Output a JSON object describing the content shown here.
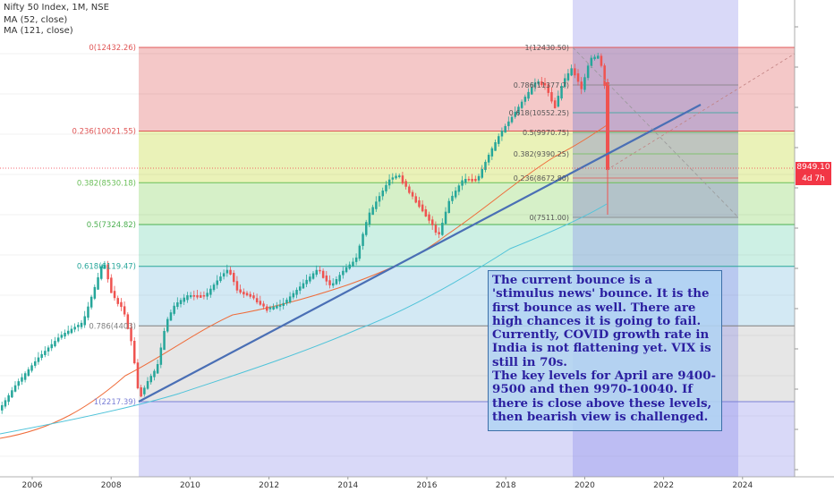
{
  "legend": {
    "symbol_line": "Nifty 50 Index, 1M, NSE",
    "ma1": "MA (52, close)",
    "ma2": "MA (121, close)"
  },
  "price_tag": {
    "value": "8949.10",
    "countdown": "4d 7h",
    "color": "#f23645"
  },
  "note": {
    "lines": [
      "The current bounce is a 'stimulus news' bounce. It is the first bounce as well. There are high chances it is going to fail.",
      "Currently, COVID growth rate in India is not flattening yet. VIX is still in 70s.",
      "The key levels for April are 9400-9500 and then 9970-10040. If there is close above these levels, then bearish view is challenged."
    ]
  },
  "chart_data": {
    "type": "candlestick",
    "title": "",
    "x_axis": {
      "ticks": [
        "2006",
        "2008",
        "2010",
        "2012",
        "2014",
        "2016",
        "2018",
        "2020",
        "2022",
        "2024"
      ]
    },
    "fib_main": {
      "levels": [
        {
          "label": "0(12432.26)",
          "value": 12432.26,
          "color": "#e05757",
          "fill": "#f4c8c8"
        },
        {
          "label": "0.236(10021.55)",
          "value": 10021.55,
          "color": "#e05757",
          "fill": "#eaf2b8"
        },
        {
          "label": "0.382(8530.18)",
          "value": 8530.18,
          "color": "#6bbf59",
          "fill": "#d6f0c8"
        },
        {
          "label": "0.5(7324.82)",
          "value": 7324.82,
          "color": "#4caf50",
          "fill": "#cdf0e4"
        },
        {
          "label": "0.618(6119.47)",
          "value": 6119.47,
          "color": "#26a69a",
          "fill": "#d3e9f4"
        },
        {
          "label": "0.786(4403)",
          "value": 4403,
          "color": "#7f7f7f",
          "fill": "#e6e6e6"
        },
        {
          "label": "1(2217.39)",
          "value": 2217.39,
          "color": "#7b7fd6",
          "fill": ""
        }
      ]
    },
    "fib_small": {
      "levels": [
        {
          "label": "1(12430.50)",
          "value": 12430.5,
          "color": "#e05757"
        },
        {
          "label": "0.786(11377.7)",
          "value": 11377.7,
          "color": "#7f7f7f"
        },
        {
          "label": "0.618(10552.25)",
          "value": 10552.25,
          "color": "#26a69a"
        },
        {
          "label": "0.5(9970.75)",
          "value": 9970.75,
          "color": "#4caf50"
        },
        {
          "label": "0.382(9390.25)",
          "value": 9390.25,
          "color": "#6bbf59"
        },
        {
          "label": "0.236(8672.80)",
          "value": 8672.8,
          "color": "#e05757"
        },
        {
          "label": "0(7511.00)",
          "value": 7511.0,
          "color": "#7f7f7f"
        }
      ]
    },
    "series": [
      {
        "name": "MA (52, close)",
        "color": "#ef6c3a"
      },
      {
        "name": "MA (121, close)",
        "color": "#4fc3d9"
      }
    ]
  }
}
